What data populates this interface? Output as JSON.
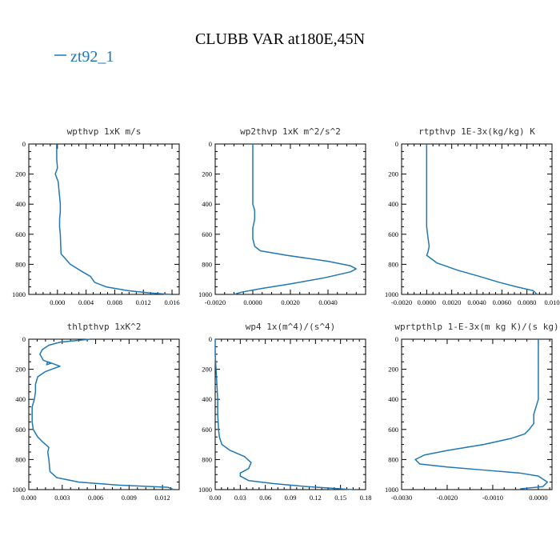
{
  "figure": {
    "title": "CLUBB VAR at180E,45N",
    "legend": {
      "label": "zt92_1",
      "color": "#1f77b4",
      "placement": "top-left"
    },
    "line_color": "#1f77b4"
  },
  "chart_data": [
    {
      "type": "line",
      "title": "wpthvp  1xK m/s",
      "xlim": [
        -0.004,
        0.017
      ],
      "ylim": [
        1000,
        0
      ],
      "xticks": [
        "0.000",
        "0.004",
        "0.008",
        "0.012",
        "0.016"
      ],
      "xtick_values": [
        0,
        0.004,
        0.008,
        0.012,
        0.016
      ],
      "yticks": [
        "0",
        "200",
        "400",
        "600",
        "800",
        "1000"
      ],
      "ytick_values": [
        0,
        200,
        400,
        600,
        800,
        1000
      ],
      "series": [
        {
          "x": [
            -0.0001,
            -0.0001,
            0.0,
            -0.0003,
            0.0001,
            0.0002,
            0.0003,
            0.0004,
            0.0004,
            0.0003,
            0.0003,
            0.0004,
            0.0005,
            0.0018,
            0.0035,
            0.0046,
            0.0052,
            0.0068,
            0.0098,
            0.0128,
            0.0158
          ],
          "y": [
            0,
            100,
            160,
            200,
            250,
            300,
            350,
            400,
            450,
            500,
            550,
            600,
            730,
            800,
            850,
            880,
            920,
            950,
            975,
            990,
            1000
          ]
        }
      ]
    },
    {
      "type": "line",
      "title": "wp2thvp  1xK m^2/s^2",
      "xlim": [
        -0.002,
        0.006
      ],
      "ylim": [
        1000,
        0
      ],
      "xticks": [
        "-0.0020",
        "0.0000",
        "0.0020",
        "0.0040"
      ],
      "xtick_values": [
        -0.002,
        0.0,
        0.002,
        0.004
      ],
      "yticks": [
        "0",
        "200",
        "400",
        "600",
        "800",
        "1000"
      ],
      "ytick_values": [
        0,
        200,
        400,
        600,
        800,
        1000
      ],
      "series": [
        {
          "x": [
            0.0,
            0.0,
            0.0,
            0.0,
            0.0,
            0.0001,
            0.0001,
            0.0,
            0.0,
            0.0001,
            0.0004,
            0.0018,
            0.004,
            0.0052,
            0.0055,
            0.0052,
            0.0038,
            0.002,
            0.0005,
            -0.0006,
            -0.001
          ],
          "y": [
            0,
            100,
            200,
            300,
            400,
            440,
            500,
            560,
            630,
            680,
            710,
            740,
            780,
            810,
            830,
            850,
            890,
            930,
            960,
            985,
            1000
          ]
        }
      ]
    },
    {
      "type": "line",
      "title": "rtpthvp  1E-3x(kg/kg) K",
      "xlim": [
        -0.002,
        0.01
      ],
      "ylim": [
        1000,
        0
      ],
      "xticks": [
        "-0.0020",
        "0.0000",
        "0.0020",
        "0.0040",
        "0.0060",
        "0.0080",
        "0.010"
      ],
      "xtick_values": [
        -0.002,
        0.0,
        0.002,
        0.004,
        0.006,
        0.008,
        0.01
      ],
      "yticks": [
        "0",
        "200",
        "400",
        "600",
        "800",
        "1000"
      ],
      "ytick_values": [
        0,
        200,
        400,
        600,
        800,
        1000
      ],
      "series": [
        {
          "x": [
            0.0,
            0.0,
            0.0,
            0.0,
            0.0001,
            0.0002,
            0.0001,
            0.0,
            0.0008,
            0.0025,
            0.0042,
            0.0058,
            0.0072,
            0.0085,
            0.0088
          ],
          "y": [
            0,
            200,
            400,
            550,
            620,
            680,
            720,
            740,
            790,
            840,
            880,
            920,
            950,
            975,
            1000
          ]
        }
      ]
    },
    {
      "type": "line",
      "title": "thlpthvp  1xK^2",
      "xlim": [
        0.0,
        0.0135
      ],
      "ylim": [
        1000,
        0
      ],
      "xticks": [
        "0.000",
        "0.003",
        "0.006",
        "0.009",
        "0.012"
      ],
      "xtick_values": [
        0.0,
        0.003,
        0.006,
        0.009,
        0.012
      ],
      "yticks": [
        "0",
        "200",
        "400",
        "600",
        "800",
        "1000"
      ],
      "ytick_values": [
        0,
        200,
        400,
        600,
        800,
        1000
      ],
      "series": [
        {
          "x": [
            0.0055,
            0.0028,
            0.0018,
            0.0012,
            0.001,
            0.0013,
            0.002,
            0.0016,
            0.0017,
            0.0028,
            0.0015,
            0.0008,
            0.0006,
            0.0006,
            0.0005,
            0.0003,
            0.0003,
            0.0003,
            0.0004,
            0.0008,
            0.0012,
            0.0018,
            0.0017,
            0.0018,
            0.0019,
            0.0025,
            0.0045,
            0.008,
            0.0125,
            0.013
          ],
          "y": [
            0,
            20,
            40,
            70,
            100,
            140,
            160,
            170,
            150,
            180,
            215,
            250,
            300,
            350,
            400,
            450,
            500,
            550,
            600,
            650,
            680,
            720,
            750,
            800,
            880,
            920,
            950,
            970,
            985,
            1000
          ]
        }
      ]
    },
    {
      "type": "line",
      "title": "wp4  1x(m^4)/(s^4)",
      "xlim": [
        0.0,
        0.18
      ],
      "ylim": [
        1000,
        0
      ],
      "xticks": [
        "0.00",
        "0.03",
        "0.06",
        "0.09",
        "0.12",
        "0.15",
        "0.18"
      ],
      "xtick_values": [
        0.0,
        0.03,
        0.06,
        0.09,
        0.12,
        0.15,
        0.18
      ],
      "yticks": [
        "0",
        "200",
        "400",
        "600",
        "800",
        "1000"
      ],
      "ytick_values": [
        0,
        200,
        400,
        600,
        800,
        1000
      ],
      "series": [
        {
          "x": [
            0.0,
            0.0,
            0.001,
            0.002,
            0.003,
            0.003,
            0.004,
            0.005,
            0.008,
            0.018,
            0.035,
            0.043,
            0.04,
            0.03,
            0.03,
            0.04,
            0.07,
            0.11,
            0.15,
            0.165
          ],
          "y": [
            0,
            100,
            200,
            300,
            400,
            500,
            600,
            650,
            700,
            740,
            780,
            820,
            860,
            890,
            910,
            940,
            960,
            980,
            995,
            1000
          ]
        }
      ]
    },
    {
      "type": "line",
      "title": "wprtpthlp  1-E-3x(m kg K)/(s kg)",
      "xlim": [
        -0.003,
        0.0003
      ],
      "ylim": [
        1000,
        0
      ],
      "xticks": [
        "-0.0030",
        "-0.0020",
        "-0.0010",
        "0.0000"
      ],
      "xtick_values": [
        -0.003,
        -0.002,
        -0.001,
        0.0
      ],
      "yticks": [
        "0",
        "200",
        "400",
        "600",
        "800",
        "1000"
      ],
      "ytick_values": [
        0,
        200,
        400,
        600,
        800,
        1000
      ],
      "series": [
        {
          "x": [
            0.0,
            0.0,
            0.0,
            -0.0001,
            -0.0001,
            -0.0002,
            -0.0003,
            -0.0006,
            -0.0012,
            -0.002,
            -0.0025,
            -0.0027,
            -0.0026,
            -0.002,
            -0.0012,
            -0.0004,
            0.0,
            0.0002,
            0.0001,
            -0.0004
          ],
          "y": [
            0,
            200,
            400,
            500,
            560,
            600,
            630,
            660,
            700,
            740,
            770,
            800,
            830,
            850,
            870,
            890,
            910,
            950,
            980,
            995
          ]
        }
      ]
    }
  ]
}
